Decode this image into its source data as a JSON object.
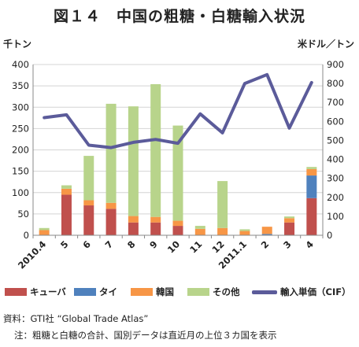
{
  "title": "図１４　中国の粗糖・白糖輸入状況",
  "notes": {
    "source": "資料：GTI社 “Global Trade Atlas”",
    "caption": "注：粗糖と白糖の合計、国別データは直近月の上位３カ国を表示"
  },
  "chart_data": {
    "type": "bar",
    "stacked": true,
    "categories": [
      "2010.4",
      "5",
      "6",
      "7",
      "8",
      "9",
      "10",
      "11",
      "12",
      "2011.1",
      "2",
      "3",
      "4"
    ],
    "y_left": {
      "unit": "千トン",
      "range": [
        0,
        400
      ],
      "ticks": [
        "0",
        "50",
        "100",
        "150",
        "200",
        "250",
        "300",
        "350",
        "400"
      ]
    },
    "y_right": {
      "unit": "米ドル／トン",
      "range": [
        0,
        900
      ],
      "ticks": [
        "0",
        "100",
        "200",
        "300",
        "400",
        "500",
        "600",
        "700",
        "800",
        "900"
      ]
    },
    "series": [
      {
        "name": "キューバ",
        "color": "#c0504d",
        "values": [
          0,
          95,
          70,
          62,
          30,
          30,
          22,
          0,
          0,
          0,
          0,
          30,
          87
        ]
      },
      {
        "name": "タイ",
        "color": "#4f81bd",
        "values": [
          0,
          0,
          0,
          0,
          0,
          0,
          0,
          0,
          0,
          0,
          3,
          0,
          53
        ]
      },
      {
        "name": "韓国",
        "color": "#f79646",
        "values": [
          12,
          14,
          12,
          14,
          15,
          13,
          12,
          15,
          17,
          10,
          17,
          10,
          15
        ]
      },
      {
        "name": "その他",
        "color": "#b8d48b",
        "values": [
          5,
          8,
          104,
          232,
          257,
          311,
          223,
          7,
          110,
          4,
          0,
          4,
          5
        ]
      }
    ],
    "line": {
      "name": "輸入単価（CIF）",
      "color": "#5b5b9a",
      "axis": "right",
      "values": [
        620,
        635,
        475,
        462,
        490,
        505,
        485,
        640,
        540,
        800,
        847,
        565,
        805
      ]
    },
    "grid": true,
    "legend": "bottom"
  }
}
